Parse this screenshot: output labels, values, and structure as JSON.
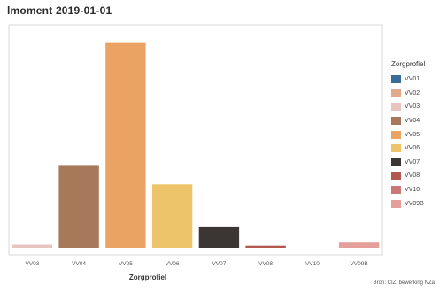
{
  "title": "lmoment 2019-01-01",
  "source": "Bron: CIZ, bewerking NZa",
  "chart_data": {
    "type": "bar",
    "title": "lmoment 2019-01-01",
    "xlabel": "Zorgprofiel",
    "ylabel": "",
    "categories": [
      "VV03",
      "VV04",
      "VV05",
      "VV06",
      "VV07",
      "VV08",
      "VV10",
      "VV09B"
    ],
    "values": [
      1.5,
      40,
      100,
      31,
      10,
      1,
      0,
      2.5
    ],
    "colors": [
      "#e7c4bf",
      "#a8785a",
      "#eba363",
      "#eec46a",
      "#3b3634",
      "#b3584f",
      "#c97777",
      "#e49f9b"
    ],
    "ylim": [
      0,
      105
    ],
    "grid": false,
    "legend": {
      "title": "Zorgprofiel",
      "position": "right",
      "items": [
        {
          "label": "VV01",
          "color": "#386d99"
        },
        {
          "label": "VV02",
          "color": "#e2a98b"
        },
        {
          "label": "VV03",
          "color": "#e7c4bf"
        },
        {
          "label": "VV04",
          "color": "#a8785a"
        },
        {
          "label": "VV05",
          "color": "#eba363"
        },
        {
          "label": "VV06",
          "color": "#eec46a"
        },
        {
          "label": "VV07",
          "color": "#3b3634"
        },
        {
          "label": "VV08",
          "color": "#b3584f"
        },
        {
          "label": "VV10",
          "color": "#c97777"
        },
        {
          "label": "VV09B",
          "color": "#e49f9b"
        }
      ]
    }
  }
}
